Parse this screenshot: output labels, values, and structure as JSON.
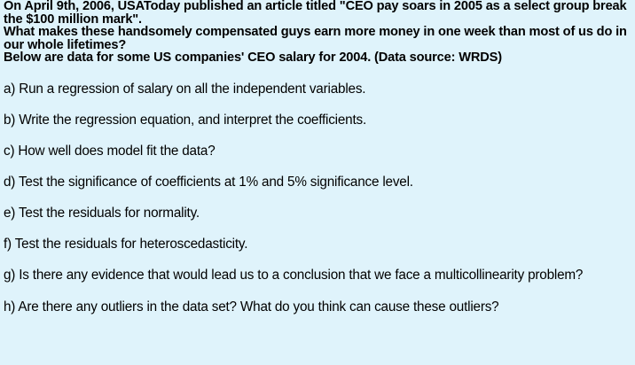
{
  "intro": {
    "line1": "On April 9th, 2006, USAToday published an article titled \"CEO pay soars in 2005 as a select group break the $100 million mark\".",
    "line2": "What makes these handsomely compensated guys earn more money in one week than most of us do in our whole lifetimes?",
    "line3": "Below are data for some US companies' CEO salary for 2004. (Data source: WRDS)"
  },
  "questions": [
    "a) Run a regression of salary on all the independent variables.",
    "b) Write the regression equation, and interpret the coefficients.",
    "c) How well does model fit the data?",
    "d) Test the significance of coefficients at 1% and 5% significance level.",
    "e) Test the residuals for normality.",
    "f) Test the residuals for heteroscedasticity.",
    "g) Is there any evidence that would lead us to a conclusion that we face a multicollinearity problem?",
    "h) Are there any outliers in the data set? What do you think can cause these outliers?"
  ],
  "colors": {
    "background": "#dff3fb",
    "text": "#000000"
  }
}
